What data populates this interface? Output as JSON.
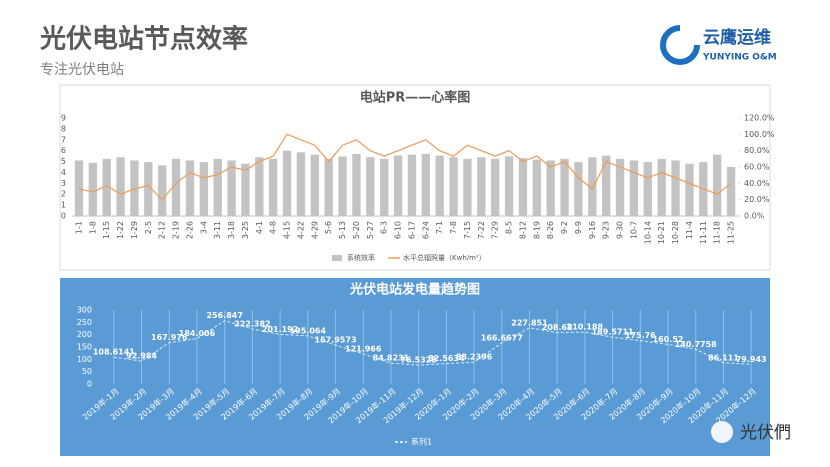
{
  "header": {
    "title": "光伏电站节点效率",
    "subtitle": "专注光伏电站",
    "logo": "云鹰运维",
    "logo_en": "YUNYING O&M",
    "watermark": "光伏們"
  },
  "chart_data": [
    {
      "type": "bar_line",
      "title": "电站PR——心率图",
      "categories": [
        "1-1",
        "1-8",
        "1-15",
        "1-22",
        "1-29",
        "2-5",
        "2-12",
        "2-19",
        "2-26",
        "3-4",
        "3-11",
        "3-18",
        "3-25",
        "4-1",
        "4-8",
        "4-15",
        "4-22",
        "4-29",
        "5-6",
        "5-13",
        "5-20",
        "5-27",
        "6-3",
        "6-10",
        "6-17",
        "6-24",
        "7-1",
        "7-8",
        "7-15",
        "7-22",
        "7-29",
        "8-5",
        "8-12",
        "8-19",
        "8-26",
        "9-2",
        "9-9",
        "9-16",
        "9-23",
        "9-30",
        "10-7",
        "10-14",
        "10-21",
        "10-28",
        "11-4",
        "11-11",
        "11-18",
        "11-25"
      ],
      "series": [
        {
          "name": "系统效率",
          "kind": "bar",
          "color": "#c3c3c3",
          "axis": "y2",
          "values": [
            68,
            65,
            70,
            72,
            68,
            66,
            62,
            70,
            68,
            66,
            70,
            68,
            64,
            72,
            70,
            80,
            78,
            75,
            70,
            73,
            76,
            72,
            70,
            74,
            75,
            76,
            74,
            72,
            70,
            72,
            70,
            73,
            71,
            69,
            68,
            70,
            66,
            72,
            74,
            70,
            68,
            66,
            70,
            68,
            64,
            66,
            75,
            60
          ]
        },
        {
          "name": "水平总辐照量（Kwh/m²）",
          "kind": "line",
          "color": "#ee9b55",
          "values": [
            2.5,
            2.2,
            2.8,
            2.0,
            2.5,
            2.8,
            1.5,
            3.0,
            4.0,
            3.5,
            3.8,
            4.5,
            4.2,
            5.0,
            5.5,
            7.5,
            7.0,
            6.5,
            5.0,
            6.5,
            7.0,
            6.0,
            5.5,
            6.0,
            6.5,
            7.0,
            6.0,
            5.5,
            6.5,
            6.0,
            5.5,
            6.0,
            5.0,
            5.5,
            4.5,
            5.0,
            3.5,
            2.5,
            5.0,
            4.5,
            4.0,
            3.5,
            4.0,
            3.5,
            3.0,
            2.5,
            2.0,
            3.0
          ]
        }
      ],
      "ylim": [
        0,
        9
      ],
      "yticks": [
        0,
        1,
        2,
        3,
        4,
        5,
        6,
        7,
        8,
        9
      ],
      "y2lim": [
        0,
        120
      ],
      "y2ticks": [
        {
          "value": 0,
          "label": "0.0%"
        },
        {
          "value": 20,
          "label": "20.0%"
        },
        {
          "value": 40,
          "label": "40.0%"
        },
        {
          "value": 60,
          "label": "60.0%"
        },
        {
          "value": 80,
          "label": "80.0%"
        },
        {
          "value": 100,
          "label": "100.0%"
        },
        {
          "value": 120,
          "label": "120.0%"
        }
      ],
      "legend": "bottom"
    },
    {
      "type": "line",
      "title": "光伏电站发电量趋势图",
      "categories": [
        "2019年-1月",
        "2019年-2月",
        "2019年-3月",
        "2019年-4月",
        "2019年-5月",
        "2019年-6月",
        "2019年-7月",
        "2019年-8月",
        "2019年-9月",
        "2019年-10月",
        "2019年-11月",
        "2019年-12月",
        "2020年-1月",
        "2020年-2月",
        "2020年-3月",
        "2020年-4月",
        "2020年-5月",
        "2020年-6月",
        "2020年-7月",
        "2020年-8月",
        "2020年-9月",
        "2020年-10月",
        "2020年-11月",
        "2020年-12月"
      ],
      "series": [
        {
          "name": "系列1",
          "color": "#ffffff",
          "values": [
            108.6141,
            92.984,
            167.976,
            184.006,
            256.847,
            222.382,
            201.192,
            195.064,
            157.9573,
            121.966,
            84.8231,
            76.5328,
            82.5634,
            88.2396,
            166.6677,
            227.851,
            208.68,
            210.188,
            189.5711,
            175.76,
            160.52,
            140.7758,
            86.111,
            79.943
          ]
        }
      ],
      "ylim": [
        0,
        300
      ],
      "yticks": [
        0,
        50,
        100,
        150,
        200,
        250,
        300
      ],
      "legend": "bottom",
      "background": "#5b9bd5"
    }
  ]
}
